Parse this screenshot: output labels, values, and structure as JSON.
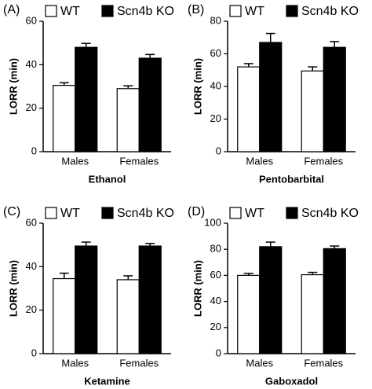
{
  "chart_data": [
    {
      "type": "bar",
      "panel": "(A)",
      "xlabel": "Ethanol",
      "ylabel": "LORR (min)",
      "categories": [
        "Males",
        "Females"
      ],
      "ylim": [
        0,
        60
      ],
      "yticks": [
        0,
        20,
        40,
        60
      ],
      "series": [
        {
          "name": "WT",
          "color": "#ffffff",
          "values": [
            30.5,
            29
          ],
          "errors": [
            1.2,
            1.3
          ]
        },
        {
          "name": "Scn4b KO",
          "color": "#000000",
          "values": [
            48,
            43
          ],
          "errors": [
            1.8,
            1.7
          ]
        }
      ]
    },
    {
      "type": "bar",
      "panel": "(B)",
      "xlabel": "Pentobarbital",
      "ylabel": "LORR (min)",
      "categories": [
        "Males",
        "Females"
      ],
      "ylim": [
        0,
        80
      ],
      "yticks": [
        0,
        20,
        40,
        60,
        80
      ],
      "series": [
        {
          "name": "WT",
          "color": "#ffffff",
          "values": [
            52,
            49.5
          ],
          "errors": [
            2,
            2.5
          ]
        },
        {
          "name": "Scn4b KO",
          "color": "#000000",
          "values": [
            67,
            64
          ],
          "errors": [
            5.5,
            3.5
          ]
        }
      ]
    },
    {
      "type": "bar",
      "panel": "(C)",
      "xlabel": "Ketamine",
      "ylabel": "LORR (min)",
      "categories": [
        "Males",
        "Females"
      ],
      "ylim": [
        0,
        60
      ],
      "yticks": [
        0,
        20,
        40,
        60
      ],
      "series": [
        {
          "name": "WT",
          "color": "#ffffff",
          "values": [
            34.5,
            34
          ],
          "errors": [
            2.5,
            1.8
          ]
        },
        {
          "name": "Scn4b KO",
          "color": "#000000",
          "values": [
            49.5,
            49.5
          ],
          "errors": [
            1.8,
            1.2
          ]
        }
      ]
    },
    {
      "type": "bar",
      "panel": "(D)",
      "xlabel": "Gaboxadol",
      "ylabel": "LORR (min)",
      "categories": [
        "Males",
        "Females"
      ],
      "ylim": [
        0,
        100
      ],
      "yticks": [
        0,
        20,
        40,
        60,
        80,
        100
      ],
      "series": [
        {
          "name": "WT",
          "color": "#ffffff",
          "values": [
            60,
            60.5
          ],
          "errors": [
            1.5,
            1.8
          ]
        },
        {
          "name": "Scn4b KO",
          "color": "#000000",
          "values": [
            82,
            80.5
          ],
          "errors": [
            3.5,
            2
          ]
        }
      ]
    }
  ]
}
